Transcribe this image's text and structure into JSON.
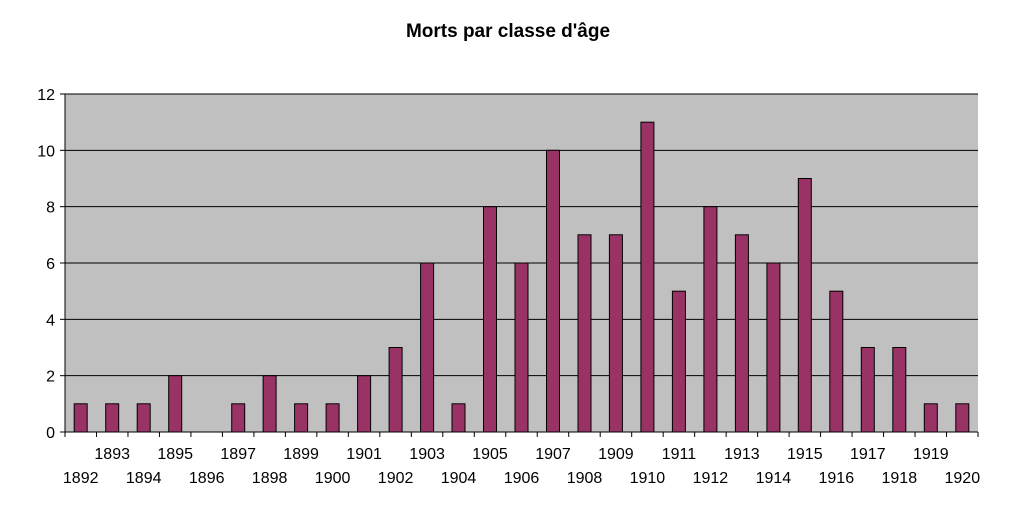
{
  "chart_data": {
    "type": "bar",
    "title": "Morts par classe d'âge",
    "xlabel": "",
    "ylabel": "",
    "categories": [
      "1892",
      "1893",
      "1894",
      "1895",
      "1896",
      "1897",
      "1898",
      "1899",
      "1900",
      "1901",
      "1902",
      "1903",
      "1904",
      "1905",
      "1906",
      "1907",
      "1908",
      "1909",
      "1910",
      "1911",
      "1912",
      "1913",
      "1914",
      "1915",
      "1916",
      "1917",
      "1918",
      "1919",
      "1920"
    ],
    "values": [
      1,
      1,
      1,
      2,
      0,
      1,
      2,
      1,
      1,
      2,
      3,
      6,
      1,
      8,
      6,
      10,
      7,
      7,
      11,
      5,
      8,
      7,
      6,
      9,
      5,
      3,
      3,
      1,
      1
    ],
    "ylim": [
      0,
      12
    ],
    "yticks": [
      0,
      2,
      4,
      6,
      8,
      10,
      12
    ],
    "grid": true,
    "legend": "none",
    "colors": {
      "bar_fill": "#993366",
      "bar_stroke": "#000000",
      "plot_background": "#c0c0c0",
      "gridline": "#000000"
    }
  }
}
